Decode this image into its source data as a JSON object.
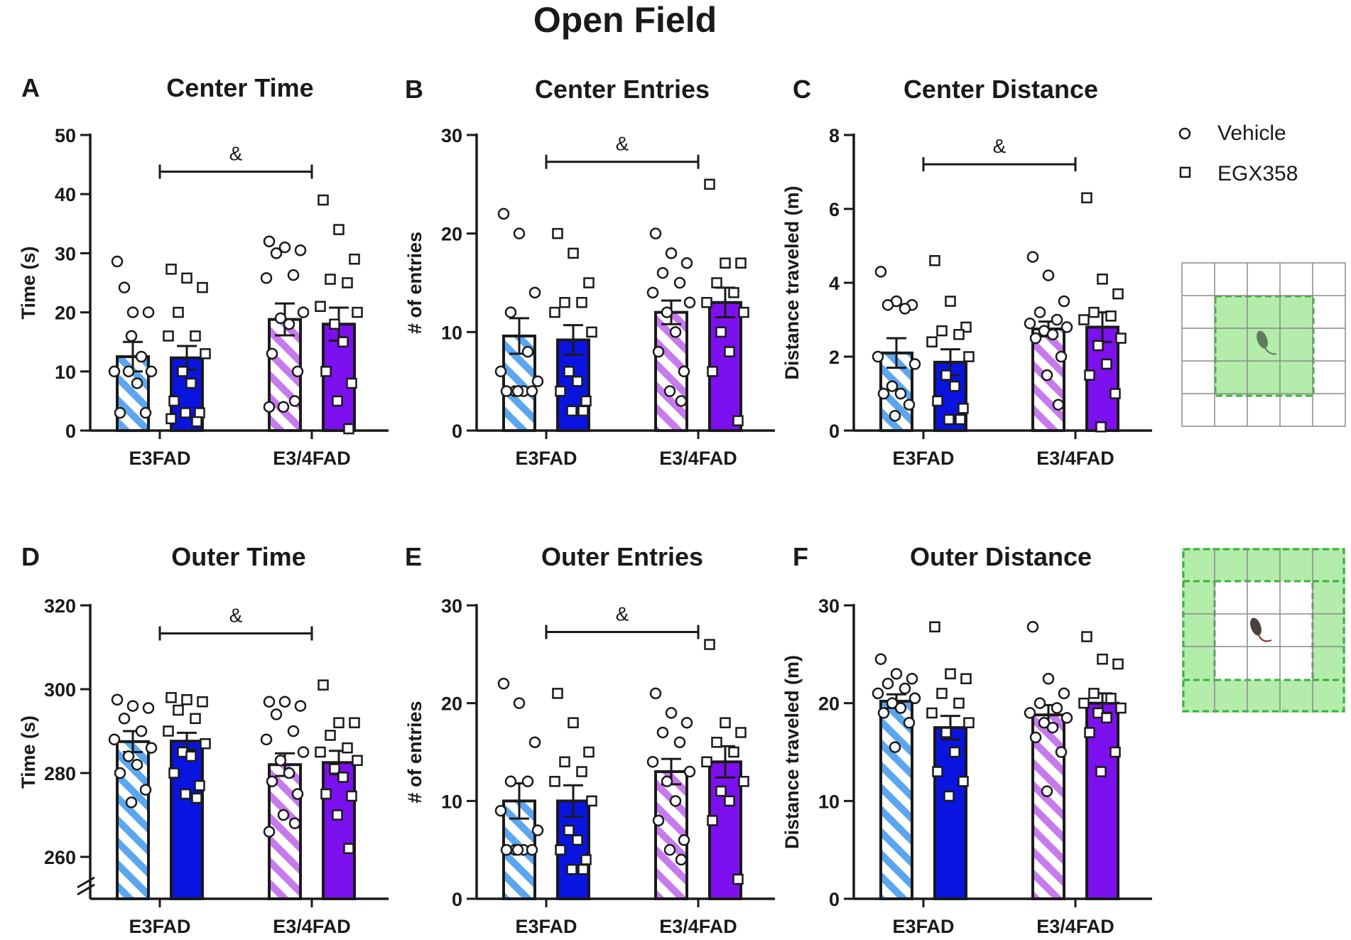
{
  "figure": {
    "title": "Open Field"
  },
  "legend": {
    "items": [
      {
        "label": "Vehicle",
        "marker": "circle"
      },
      {
        "label": "EGX358",
        "marker": "square"
      }
    ]
  },
  "colors": {
    "e3_light": "#5ba6ef",
    "e3_dark": "#0a14e0",
    "e34_light": "#c779ee",
    "e34_dark": "#7d10ee",
    "arena_zone": "#b4ecab",
    "arena_zone_border": "#3cb03c",
    "grid": "#8a8a8a",
    "mouse": "#4a4a4a"
  },
  "chart_data": [
    {
      "panel": "A",
      "title": "Center Time",
      "type": "bar",
      "ylabel": "Time (s)",
      "ylim": [
        0,
        50
      ],
      "yticks": [
        0,
        10,
        20,
        30,
        40,
        50
      ],
      "y_break": false,
      "categories": [
        "E3FAD",
        "E3/4FAD"
      ],
      "series": [
        {
          "name": "Vehicle",
          "genotype": "E3FAD",
          "mean": 12.5,
          "sem": 2.5,
          "points": [
            28.6,
            20.0,
            20.0,
            24.2,
            12.5,
            10.0,
            10.0,
            10.0,
            8.0,
            3.0,
            3.0,
            16.0
          ]
        },
        {
          "name": "EGX358",
          "genotype": "E3FAD",
          "mean": 12.3,
          "sem": 2.0,
          "points": [
            27.3,
            25.8,
            24.2,
            20.0,
            16.0,
            16.0,
            13.0,
            10.0,
            8.0,
            5.0,
            3.0,
            3.0,
            1.5,
            2.0
          ]
        },
        {
          "name": "Vehicle",
          "genotype": "E3/4FAD",
          "mean": 18.8,
          "sem": 2.7,
          "points": [
            32.0,
            31.0,
            30.5,
            30.0,
            26.3,
            25.8,
            20.0,
            19.0,
            18.0,
            13.0,
            10.0,
            4.0,
            5.0,
            4.0
          ]
        },
        {
          "name": "EGX358",
          "genotype": "E3/4FAD",
          "mean": 18.0,
          "sem": 2.8,
          "points": [
            39.0,
            34.0,
            29.0,
            25.6,
            25.0,
            21.0,
            20.0,
            18.0,
            15.0,
            10.0,
            8.0,
            5.0,
            0.3
          ]
        }
      ],
      "significance": {
        "symbol": "&",
        "from": "E3FAD",
        "to": "E3/4FAD",
        "y": 45
      }
    },
    {
      "panel": "B",
      "title": "Center Entries",
      "type": "bar",
      "ylabel": "# of entries",
      "ylim": [
        0,
        30
      ],
      "yticks": [
        0,
        10,
        20,
        30
      ],
      "y_break": false,
      "categories": [
        "E3FAD",
        "E3/4FAD"
      ],
      "series": [
        {
          "name": "Vehicle",
          "genotype": "E3FAD",
          "mean": 9.6,
          "sem": 1.8,
          "points": [
            22.0,
            20.0,
            14.0,
            12.0,
            8.0,
            6.0,
            5.0,
            4.0,
            4.0,
            4.0,
            4.0,
            4.0
          ]
        },
        {
          "name": "EGX358",
          "genotype": "E3FAD",
          "mean": 9.2,
          "sem": 1.5,
          "points": [
            20.0,
            18.0,
            15.0,
            13.0,
            13.0,
            12.0,
            10.0,
            6.0,
            5.0,
            4.0,
            3.0,
            2.0,
            2.0
          ]
        },
        {
          "name": "Vehicle",
          "genotype": "E3/4FAD",
          "mean": 12.0,
          "sem": 1.2,
          "points": [
            20.0,
            18.0,
            17.0,
            16.0,
            15.0,
            14.0,
            13.0,
            12.0,
            10.0,
            8.0,
            6.0,
            4.0,
            3.0
          ]
        },
        {
          "name": "EGX358",
          "genotype": "E3/4FAD",
          "mean": 13.0,
          "sem": 1.5,
          "points": [
            25.0,
            17.0,
            17.0,
            15.0,
            14.0,
            13.0,
            12.0,
            10.0,
            8.0,
            6.0,
            1.0
          ]
        }
      ],
      "significance": {
        "symbol": "&",
        "from": "E3FAD",
        "to": "E3/4FAD",
        "y": 28
      }
    },
    {
      "panel": "C",
      "title": "Center Distance",
      "type": "bar",
      "ylabel": "Distance traveled (m)",
      "ylim": [
        0,
        8
      ],
      "yticks": [
        0,
        2,
        4,
        6,
        8
      ],
      "y_break": false,
      "categories": [
        "E3FAD",
        "E3/4FAD"
      ],
      "series": [
        {
          "name": "Vehicle",
          "genotype": "E3FAD",
          "mean": 2.1,
          "sem": 0.4,
          "points": [
            4.3,
            3.5,
            3.4,
            3.4,
            3.3,
            2.0,
            1.8,
            1.2,
            1.0,
            1.0,
            0.7,
            0.4
          ]
        },
        {
          "name": "EGX358",
          "genotype": "E3FAD",
          "mean": 1.85,
          "sem": 0.35,
          "points": [
            4.6,
            3.5,
            2.8,
            2.7,
            2.6,
            2.4,
            2.0,
            1.5,
            1.2,
            0.8,
            0.6,
            0.3,
            0.3
          ]
        },
        {
          "name": "Vehicle",
          "genotype": "E3/4FAD",
          "mean": 2.75,
          "sem": 0.2,
          "points": [
            4.7,
            4.2,
            3.5,
            3.2,
            3.0,
            2.9,
            2.8,
            2.7,
            2.6,
            2.5,
            2.0,
            1.5,
            0.7
          ]
        },
        {
          "name": "EGX358",
          "genotype": "E3/4FAD",
          "mean": 2.8,
          "sem": 0.4,
          "points": [
            6.3,
            4.1,
            3.7,
            3.2,
            3.1,
            3.0,
            2.5,
            2.3,
            1.8,
            1.5,
            1.0,
            0.1
          ]
        }
      ],
      "significance": {
        "symbol": "&",
        "from": "E3FAD",
        "to": "E3/4FAD",
        "y": 7.4
      }
    },
    {
      "panel": "D",
      "title": "Outer Time",
      "type": "bar",
      "ylabel": "Time (s)",
      "ylim": [
        250,
        320
      ],
      "yticks": [
        260,
        280,
        300,
        320
      ],
      "y_break": true,
      "categories": [
        "E3FAD",
        "E3/4FAD"
      ],
      "series": [
        {
          "name": "Vehicle",
          "genotype": "E3FAD",
          "mean": 287.5,
          "sem": 2.5,
          "points": [
            297.5,
            296.0,
            295.5,
            293.0,
            290.0,
            288.0,
            286.0,
            284.0,
            282.0,
            280.0,
            276.0,
            273.0
          ]
        },
        {
          "name": "EGX358",
          "genotype": "E3FAD",
          "mean": 287.6,
          "sem": 2.0,
          "points": [
            298.0,
            297.5,
            297.0,
            295.0,
            293.0,
            290.0,
            287.0,
            285.0,
            284.0,
            280.0,
            277.0,
            275.0,
            274.0
          ]
        },
        {
          "name": "Vehicle",
          "genotype": "E3/4FAD",
          "mean": 282.0,
          "sem": 2.7,
          "points": [
            297.0,
            297.0,
            296.0,
            294.0,
            290.0,
            288.0,
            285.0,
            283.0,
            280.0,
            278.0,
            275.0,
            270.0,
            268.0,
            266.0
          ]
        },
        {
          "name": "EGX358",
          "genotype": "E3/4FAD",
          "mean": 282.5,
          "sem": 2.8,
          "points": [
            301.0,
            292.0,
            292.0,
            289.0,
            286.0,
            285.0,
            283.0,
            281.0,
            279.0,
            275.0,
            274.5,
            270.0,
            262.0
          ]
        }
      ],
      "significance": {
        "symbol": "&",
        "from": "E3FAD",
        "to": "E3/4FAD",
        "y": 315
      }
    },
    {
      "panel": "E",
      "title": "Outer Entries",
      "type": "bar",
      "ylabel": "# of entries",
      "ylim": [
        0,
        30
      ],
      "yticks": [
        0,
        10,
        20,
        30
      ],
      "y_break": false,
      "categories": [
        "E3FAD",
        "E3/4FAD"
      ],
      "series": [
        {
          "name": "Vehicle",
          "genotype": "E3FAD",
          "mean": 10.0,
          "sem": 1.8,
          "points": [
            22.0,
            20.0,
            16.0,
            12.0,
            12.0,
            9.0,
            7.0,
            5.0,
            5.0,
            5.0,
            5.0,
            5.0
          ]
        },
        {
          "name": "EGX358",
          "genotype": "E3FAD",
          "mean": 10.0,
          "sem": 1.6,
          "points": [
            21.0,
            18.0,
            15.0,
            14.0,
            13.0,
            12.0,
            10.0,
            7.0,
            6.0,
            5.0,
            4.0,
            3.0,
            3.0
          ]
        },
        {
          "name": "Vehicle",
          "genotype": "E3/4FAD",
          "mean": 13.0,
          "sem": 1.3,
          "points": [
            21.0,
            19.0,
            18.0,
            17.0,
            16.0,
            14.0,
            13.0,
            12.0,
            10.0,
            8.0,
            6.0,
            5.0,
            4.0
          ]
        },
        {
          "name": "EGX358",
          "genotype": "E3/4FAD",
          "mean": 14.0,
          "sem": 1.6,
          "points": [
            26.0,
            18.0,
            17.0,
            16.0,
            15.0,
            14.0,
            12.0,
            11.0,
            10.0,
            8.0,
            2.0
          ]
        }
      ],
      "significance": {
        "symbol": "&",
        "from": "E3FAD",
        "to": "E3/4FAD",
        "y": 28
      }
    },
    {
      "panel": "F",
      "title": "Outer Distance",
      "type": "bar",
      "ylabel": "Distance traveled (m)",
      "ylim": [
        0,
        30
      ],
      "yticks": [
        0,
        10,
        20,
        30
      ],
      "y_break": false,
      "categories": [
        "E3FAD",
        "E3/4FAD"
      ],
      "series": [
        {
          "name": "Vehicle",
          "genotype": "E3FAD",
          "mean": 20.2,
          "sem": 0.7,
          "points": [
            24.5,
            23.0,
            22.5,
            22.0,
            21.5,
            21.0,
            20.5,
            20.0,
            19.5,
            19.0,
            18.0,
            15.5
          ]
        },
        {
          "name": "EGX358",
          "genotype": "E3FAD",
          "mean": 17.5,
          "sem": 1.2,
          "points": [
            27.8,
            23.0,
            22.5,
            21.0,
            20.0,
            19.0,
            18.0,
            17.0,
            15.0,
            13.0,
            12.0,
            10.5
          ]
        },
        {
          "name": "Vehicle",
          "genotype": "E3/4FAD",
          "mean": 18.8,
          "sem": 1.0,
          "points": [
            27.8,
            22.5,
            21.0,
            20.0,
            19.5,
            19.0,
            18.5,
            18.0,
            17.5,
            16.5,
            15.0,
            11.0
          ]
        },
        {
          "name": "EGX358",
          "genotype": "E3/4FAD",
          "mean": 20.0,
          "sem": 1.0,
          "points": [
            26.8,
            24.5,
            24.0,
            21.0,
            20.5,
            20.0,
            19.5,
            19.0,
            18.5,
            17.0,
            15.0,
            13.0
          ]
        }
      ],
      "significance": null
    }
  ]
}
